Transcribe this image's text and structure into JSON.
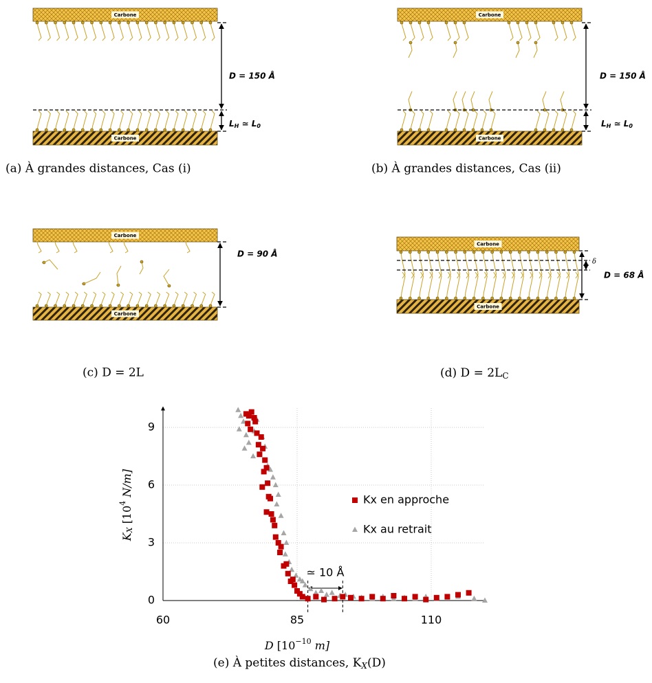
{
  "panels": [
    {
      "caption": "(a) À grandes distances, Cas (i)",
      "plates": [
        "Carbone",
        "Carbone"
      ],
      "distance": "D = 150 Å",
      "thickness": [
        "L",
        "H",
        " ≃ L",
        "0"
      ]
    },
    {
      "caption": "(b) À grandes distances, Cas (ii)",
      "plates": [
        "Carbone",
        "Carbone"
      ],
      "distance": "D = 150 Å",
      "thickness": [
        "L",
        "H",
        " ≃ L",
        "0"
      ]
    },
    {
      "caption": "(c) D = 2L",
      "plates": [
        "Carbone",
        "Carbone"
      ],
      "distance": "D = 90 Å"
    },
    {
      "caption": [
        "(d) D = 2L",
        "C"
      ],
      "plates": [
        "Carbone",
        "Carbone"
      ],
      "distance": "D = 68 Å",
      "delta": "δ"
    }
  ],
  "chart_data": {
    "type": "scatter",
    "caption": [
      "(e) À petites distances, K",
      "X",
      "(D)"
    ],
    "xlabel": [
      "D",
      " [10",
      "−10",
      " m]"
    ],
    "ylabel": [
      "K",
      "X",
      " [10",
      "4",
      " N/m]"
    ],
    "xlim": [
      60,
      120
    ],
    "ylim": [
      0,
      10
    ],
    "xticks": [
      60,
      85,
      110
    ],
    "yticks": [
      0,
      3,
      6,
      9
    ],
    "grid": true,
    "legend": "right",
    "annotation": {
      "text": "≃ 10 Å",
      "x": [
        87,
        93.5
      ]
    },
    "series": [
      {
        "name": "Kx en approche",
        "color": "#c00000",
        "marker": "square",
        "x": [
          75.5,
          76,
          76.5,
          77,
          75.8,
          76.3,
          77.2,
          77.5,
          77.8,
          78,
          78.3,
          78.6,
          79,
          78.8,
          79.3,
          78.5,
          79.5,
          79.7,
          80,
          79.3,
          80.2,
          80.5,
          80.8,
          81,
          81.5,
          82,
          81.8,
          82.5,
          83,
          83.3,
          83.8,
          84.2,
          84.5,
          85,
          85.5,
          86,
          87,
          88.5,
          90,
          92,
          93.5,
          95,
          97,
          99,
          101,
          103,
          105,
          107,
          109,
          111,
          113,
          115,
          117
        ],
        "values": [
          9.7,
          9.6,
          9.8,
          9.5,
          9.2,
          8.9,
          9.3,
          8.7,
          8.1,
          7.6,
          8.5,
          7.9,
          7.3,
          6.7,
          6.9,
          5.9,
          6.1,
          5.4,
          5.3,
          4.6,
          4.5,
          4.2,
          3.9,
          3.3,
          3.0,
          2.8,
          2.5,
          1.8,
          1.9,
          1.4,
          1.0,
          1.1,
          0.8,
          0.5,
          0.35,
          0.2,
          0.1,
          0.2,
          0.05,
          0.1,
          0.2,
          0.15,
          0.1,
          0.2,
          0.1,
          0.25,
          0.1,
          0.2,
          0.05,
          0.15,
          0.2,
          0.3,
          0.4
        ]
      },
      {
        "name": "Kx au retrait",
        "color": "#a6a6a6",
        "marker": "triangle",
        "x": [
          74,
          74.5,
          75,
          74.2,
          75.5,
          76,
          75.2,
          76.8,
          77,
          77.5,
          78.5,
          79,
          79.5,
          80,
          80.5,
          81,
          81.5,
          81.2,
          82,
          82.5,
          83,
          82.8,
          83.5,
          84,
          84.8,
          85.5,
          86,
          86.5,
          87.5,
          88.5,
          89.5,
          90.5,
          91.5,
          93,
          94,
          95.5,
          97,
          99,
          101,
          103,
          105,
          107,
          109,
          111,
          113,
          115,
          118,
          120
        ],
        "values": [
          9.9,
          9.6,
          9.3,
          8.9,
          8.6,
          8.2,
          7.9,
          7.5,
          8.8,
          9.4,
          8.5,
          8.0,
          7.0,
          6.8,
          6.4,
          6.0,
          5.5,
          5.0,
          4.4,
          3.5,
          3.0,
          2.4,
          2.0,
          1.6,
          1.3,
          1.1,
          1.0,
          0.8,
          0.6,
          0.4,
          0.5,
          0.3,
          0.4,
          0.25,
          0.3,
          0.2,
          0.15,
          0.1,
          0.2,
          0.1,
          0.15,
          0.1,
          0.2,
          0.1,
          0.15,
          0.2,
          0.1,
          0.0
        ]
      }
    ]
  }
}
